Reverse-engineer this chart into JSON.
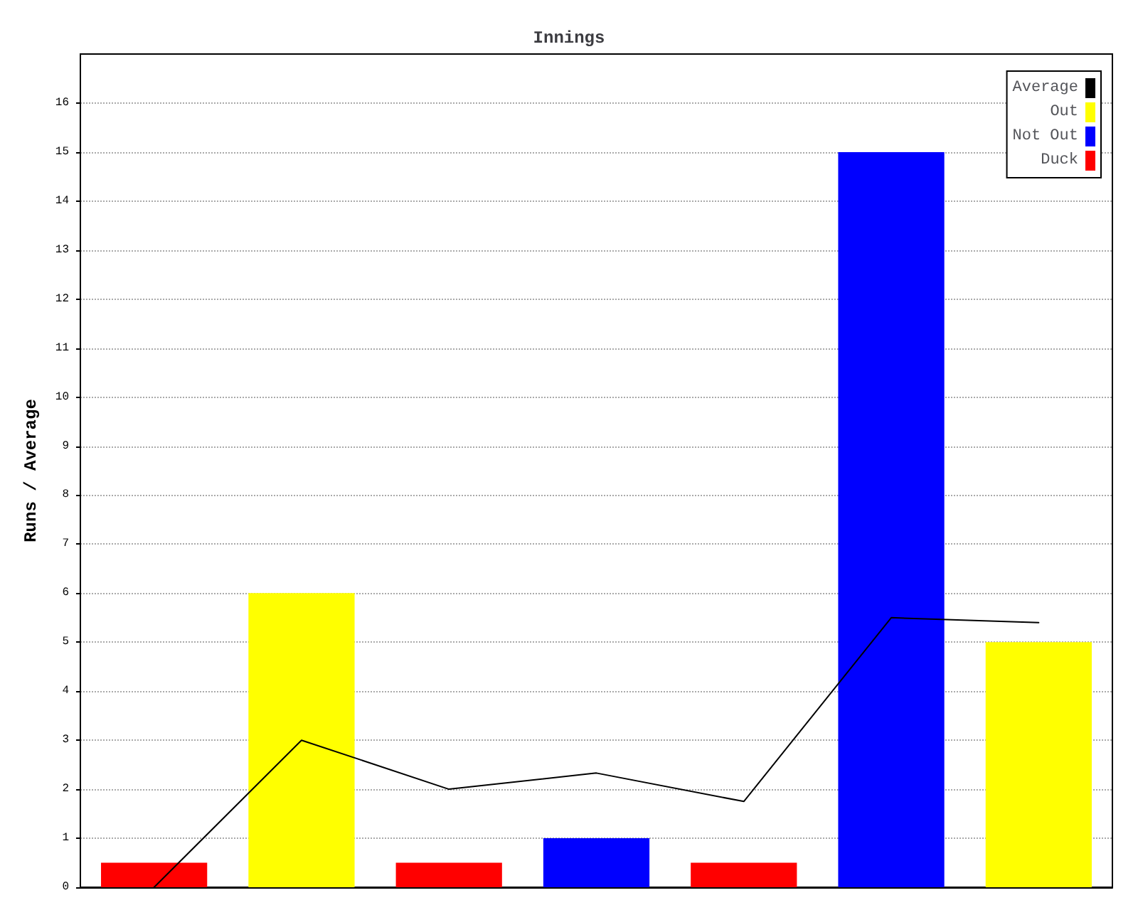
{
  "chart_data": {
    "type": "bar",
    "title": "Innings",
    "ylabel": "Runs / Average",
    "categories": [
      null,
      null,
      null,
      null,
      null,
      null,
      null
    ],
    "stacked": true,
    "ylim": [
      0,
      17
    ],
    "yticks": [
      0,
      1,
      2,
      3,
      4,
      5,
      6,
      7,
      8,
      9,
      10,
      11,
      12,
      13,
      14,
      15,
      16
    ],
    "grid": "y",
    "legend": "top right",
    "marker": "none",
    "line_style": "solid",
    "series": [
      {
        "name": "Average",
        "type": "line",
        "color": "#000000",
        "values": [
          0,
          3,
          2,
          2.33,
          1.75,
          5.5,
          5.4
        ]
      },
      {
        "name": "Out",
        "color": "#ffff00",
        "values": [
          null,
          6,
          null,
          null,
          null,
          null,
          5
        ]
      },
      {
        "name": "Not Out",
        "color": "#0000ff",
        "values": [
          null,
          null,
          null,
          1,
          null,
          15,
          null
        ]
      },
      {
        "name": "Duck",
        "color": "#ff0000",
        "values": [
          0.5,
          null,
          0.5,
          null,
          0.5,
          null,
          null
        ]
      }
    ]
  }
}
